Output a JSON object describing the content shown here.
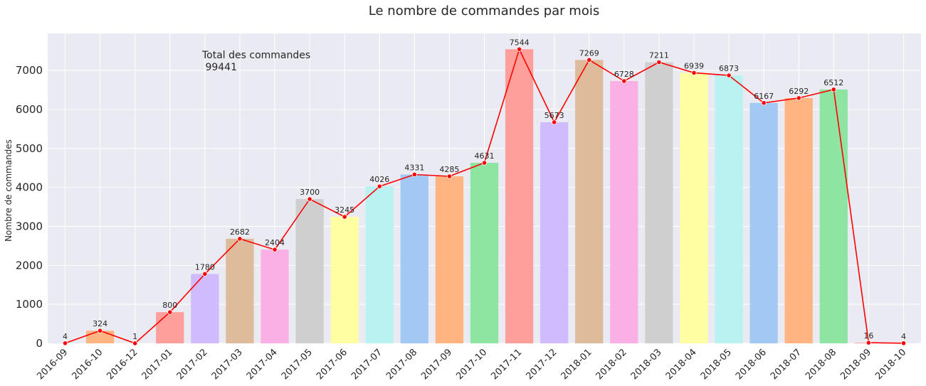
{
  "chart_data": {
    "type": "bar",
    "title": "Le nombre de commandes par mois",
    "xlabel": "",
    "ylabel": "Nombre de commandes",
    "ylim": [
      0,
      7950
    ],
    "yticks": [
      0,
      1000,
      2000,
      3000,
      4000,
      5000,
      6000,
      7000
    ],
    "grid": true,
    "categories": [
      "2016-09",
      "2016-10",
      "2016-12",
      "2017-01",
      "2017-02",
      "2017-03",
      "2017-04",
      "2017-05",
      "2017-06",
      "2017-07",
      "2017-08",
      "2017-09",
      "2017-10",
      "2017-11",
      "2017-12",
      "2018-01",
      "2018-02",
      "2018-03",
      "2018-04",
      "2018-05",
      "2018-06",
      "2018-07",
      "2018-08",
      "2018-09",
      "2018-10"
    ],
    "values": [
      4,
      324,
      1,
      800,
      1780,
      2682,
      2404,
      3700,
      3245,
      4026,
      4331,
      4285,
      4631,
      7544,
      5673,
      7269,
      6728,
      7211,
      6939,
      6873,
      6167,
      6292,
      6512,
      16,
      4
    ],
    "bar_colors": [
      "#a1c9f4",
      "#ffb482",
      "#8de5a1",
      "#ff9f9b",
      "#d0bbff",
      "#debb9b",
      "#fab0e4",
      "#cfcfcf",
      "#fffea3",
      "#b9f2f0"
    ],
    "line_color": "#ff0000",
    "background_color": "#eaeaf2",
    "annotation": {
      "line1": "Total des commandes",
      "line2": " 99441"
    }
  }
}
